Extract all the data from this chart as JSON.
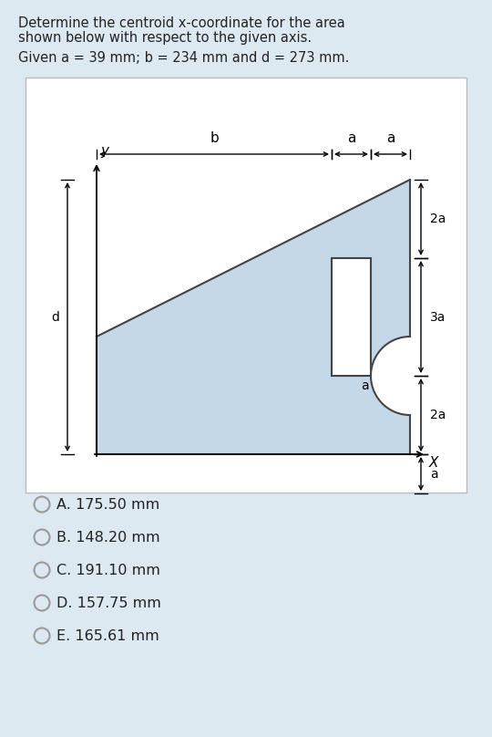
{
  "title_line1": "Determine the centroid x-coordinate for the area",
  "title_line2": "shown below with respect to the given axis.",
  "given_text": "Given a = 39 mm; b = 234 mm and d = 273 mm.",
  "a": 39,
  "b": 234,
  "d": 273,
  "fig_bg": "#dce9f0",
  "box_bg": "white",
  "shape_fill": "#c5d8e8",
  "shape_edge": "#444444",
  "options": [
    "A. 175.50 mm",
    "B. 148.20 mm",
    "C. 191.10 mm",
    "D. 157.75 mm",
    "E. 165.61 mm"
  ],
  "text_color": "#222222",
  "radio_color": "#999999"
}
